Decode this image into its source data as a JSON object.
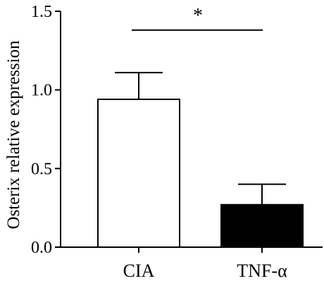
{
  "chart_data": {
    "type": "bar",
    "categories": [
      "CIA",
      "TNF-α"
    ],
    "values": [
      0.94,
      0.27
    ],
    "errors": [
      0.17,
      0.13
    ],
    "bar_fill": [
      "#ffffff",
      "#000000"
    ],
    "bar_stroke": "#000000",
    "ylabel": "Osterix relative expression",
    "xlabel": "",
    "ylim": [
      0,
      1.5
    ],
    "yticks": [
      0.0,
      0.5,
      1.0,
      1.5
    ],
    "ytick_labels": [
      "0.0",
      "0.5",
      "1.0",
      "1.5"
    ],
    "grid": false,
    "significance": {
      "label": "*",
      "between": [
        "CIA",
        "TNF-α"
      ],
      "level": 1.38
    }
  }
}
